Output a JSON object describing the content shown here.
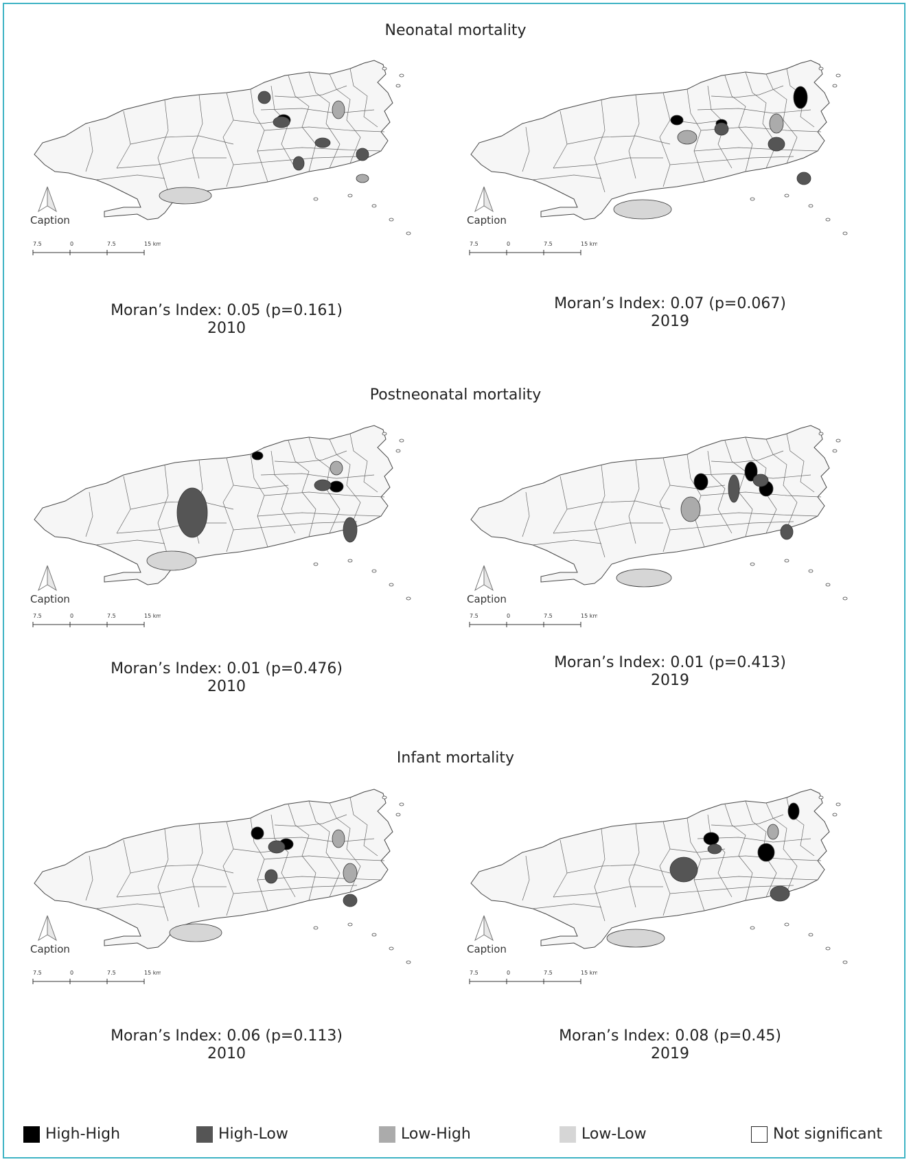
{
  "sections": [
    {
      "title": "Neonatal mortality",
      "panels": [
        {
          "caption": "Caption",
          "moran": "Moran’s Index: 0.05 (p=0.161)",
          "year": "2010",
          "scale": [
            "7.5",
            "0",
            "7.5",
            "15 km"
          ],
          "north_icon": "north-arrow-icon",
          "clusters": [
            "High-High",
            "High-Low",
            "High-Low",
            "High-Low",
            "High-Low",
            "High-Low",
            "Low-High",
            "Low-High",
            "Low-Low"
          ]
        },
        {
          "caption": "Caption",
          "moran": "Moran’s Index: 0.07 (p=0.067)",
          "year": "2019",
          "scale": [
            "7.5",
            "0",
            "7.5",
            "15 km"
          ],
          "north_icon": "north-arrow-icon",
          "clusters": [
            "High-High",
            "High-High",
            "High-High",
            "High-Low",
            "High-Low",
            "High-Low",
            "Low-High",
            "Low-High",
            "Low-Low"
          ]
        }
      ]
    },
    {
      "title": "Postneonatal mortality",
      "panels": [
        {
          "caption": "Caption",
          "moran": "Moran’s Index: 0.01 (p=0.476)",
          "year": "2010",
          "scale": [
            "7.5",
            "0",
            "7.5",
            "15 km"
          ],
          "north_icon": "north-arrow-icon",
          "clusters": [
            "High-High",
            "High-High",
            "High-Low",
            "High-Low",
            "High-Low",
            "Low-High",
            "Low-Low"
          ]
        },
        {
          "caption": "Caption",
          "moran": "Moran’s Index: 0.01 (p=0.413)",
          "year": "2019",
          "scale": [
            "7.5",
            "0",
            "7.5",
            "15 km"
          ],
          "north_icon": "north-arrow-icon",
          "clusters": [
            "High-High",
            "High-High",
            "High-High",
            "High-Low",
            "High-Low",
            "High-Low",
            "Low-High",
            "Low-Low"
          ]
        }
      ]
    },
    {
      "title": "Infant mortality",
      "panels": [
        {
          "caption": "Caption",
          "moran": "Moran’s Index: 0.06 (p=0.113)",
          "year": "2010",
          "scale": [
            "7.5",
            "0",
            "7.5",
            "15 km"
          ],
          "north_icon": "north-arrow-icon",
          "clusters": [
            "High-High",
            "High-High",
            "High-Low",
            "High-Low",
            "High-Low",
            "Low-High",
            "Low-High",
            "Low-Low"
          ]
        },
        {
          "caption": "Caption",
          "moran": "Moran’s Index: 0.08 (p=0.45)",
          "year": "2019",
          "scale": [
            "7.5",
            "0",
            "7.5",
            "15 km"
          ],
          "north_icon": "north-arrow-icon",
          "clusters": [
            "High-High",
            "High-High",
            "High-High",
            "High-Low",
            "High-Low",
            "High-Low",
            "Low-High",
            "Low-Low"
          ]
        }
      ]
    }
  ],
  "legend": [
    {
      "label": "High-High",
      "color": "#000000"
    },
    {
      "label": "High-Low",
      "color": "#555555"
    },
    {
      "label": "Low-High",
      "color": "#ababab"
    },
    {
      "label": "Low-Low",
      "color": "#d6d6d6"
    },
    {
      "label": "Not significant",
      "color": "#ffffff"
    }
  ],
  "colors": {
    "frame": "#3eb3c4",
    "base_fill": "#f6f6f6",
    "outline": "#444444"
  }
}
